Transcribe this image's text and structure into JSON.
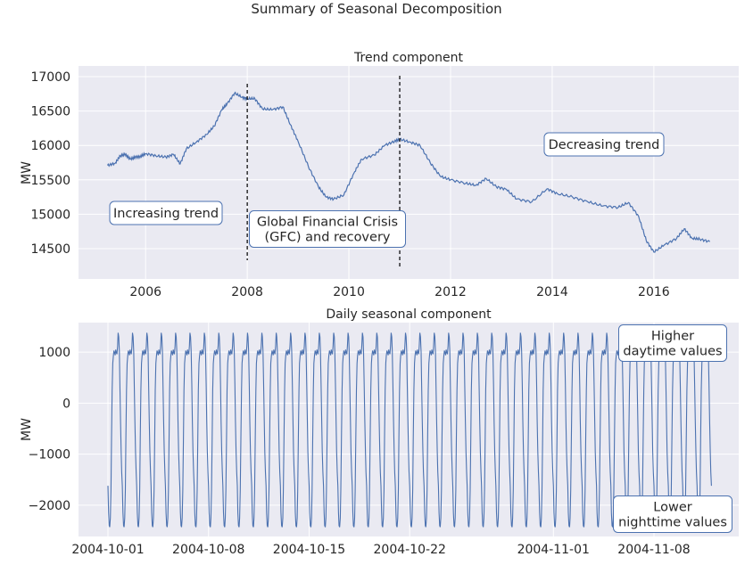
{
  "title": "Summary of Seasonal Decomposition",
  "colors": {
    "line": "#4c72b0",
    "plot_bg": "#eaeaf2",
    "grid": "#ffffff",
    "annotation_border": "#4c72b0"
  },
  "chart_data": [
    {
      "type": "line",
      "title": "Trend component",
      "xlabel": "",
      "ylabel": "MW",
      "xlim": [
        2004.68,
        2017.67
      ],
      "ylim": [
        14060,
        17155
      ],
      "grid": true,
      "x_ticks": [
        2006,
        2008,
        2010,
        2012,
        2014,
        2016
      ],
      "x_tick_labels": [
        "2006",
        "2008",
        "2010",
        "2012",
        "2014",
        "2016"
      ],
      "y_ticks": [
        14500,
        15000,
        15500,
        16000,
        16500,
        17000
      ],
      "y_tick_labels": [
        "14500",
        "15000",
        "15500",
        "16000",
        "16500",
        "17000"
      ],
      "x": [
        2005.25,
        2005.4,
        2005.5,
        2005.6,
        2005.7,
        2005.8,
        2005.9,
        2006.0,
        2006.2,
        2006.4,
        2006.55,
        2006.68,
        2006.8,
        2007.0,
        2007.2,
        2007.35,
        2007.5,
        2007.6,
        2007.75,
        2007.9,
        2008.0,
        2008.15,
        2008.3,
        2008.5,
        2008.7,
        2008.85,
        2009.0,
        2009.2,
        2009.4,
        2009.55,
        2009.7,
        2009.9,
        2010.1,
        2010.25,
        2010.5,
        2010.7,
        2010.9,
        2011.0,
        2011.2,
        2011.4,
        2011.6,
        2011.8,
        2012.0,
        2012.3,
        2012.5,
        2012.7,
        2012.9,
        2013.1,
        2013.3,
        2013.6,
        2013.9,
        2014.1,
        2014.4,
        2014.7,
        2015.0,
        2015.3,
        2015.5,
        2015.7,
        2015.85,
        2016.0,
        2016.2,
        2016.45,
        2016.6,
        2016.75,
        2016.9,
        2017.1
      ],
      "y": [
        15710,
        15740,
        15850,
        15870,
        15800,
        15830,
        15840,
        15880,
        15850,
        15830,
        15870,
        15730,
        15950,
        16050,
        16160,
        16280,
        16520,
        16600,
        16760,
        16700,
        16680,
        16680,
        16530,
        16520,
        16560,
        16300,
        16060,
        15700,
        15400,
        15250,
        15220,
        15280,
        15600,
        15800,
        15860,
        16000,
        16060,
        16090,
        16050,
        16000,
        15750,
        15550,
        15500,
        15450,
        15420,
        15520,
        15400,
        15360,
        15220,
        15180,
        15370,
        15300,
        15250,
        15180,
        15120,
        15100,
        15170,
        14970,
        14620,
        14450,
        14550,
        14650,
        14790,
        14650,
        14640,
        14600
      ],
      "vlines": [
        2008.0,
        2011.0
      ],
      "annotations": [
        {
          "text": "Increasing trend"
        },
        {
          "text": "Global Financial Crisis\n(GFC) and recovery"
        },
        {
          "text": "Decreasing trend"
        }
      ]
    },
    {
      "type": "line",
      "title": "Daily seasonal component",
      "xlabel": "",
      "ylabel": "MW",
      "x_start": "2004-10-01",
      "x_end": "2004-11-12",
      "xlim_days_from_start": [
        -2.05,
        43.9
      ],
      "ylim": [
        -2614,
        1579
      ],
      "grid": true,
      "x_tick_labels": [
        "2004-10-01",
        "2004-10-08",
        "2004-10-15",
        "2004-10-22",
        "2004-11-01",
        "2004-11-08"
      ],
      "x_tick_dates": [
        "2004-10-01",
        "2004-10-08",
        "2004-10-15",
        "2004-10-22",
        "2004-11-01",
        "2004-11-08"
      ],
      "y_ticks": [
        -2000,
        -1000,
        0,
        1000
      ],
      "y_tick_labels": [
        "−2000",
        "−1000",
        "0",
        "1000"
      ],
      "hourly_profile": [
        -1620,
        -2150,
        -2400,
        -2430,
        -2250,
        -1700,
        -700,
        250,
        780,
        930,
        1030,
        990,
        940,
        1050,
        990,
        960,
        1120,
        1380,
        1300,
        1000,
        350,
        -350,
        -950,
        -1350
      ],
      "annotations": [
        {
          "text": "Higher\ndaytime values"
        },
        {
          "text": "Lower\nnighttime values"
        }
      ]
    }
  ]
}
